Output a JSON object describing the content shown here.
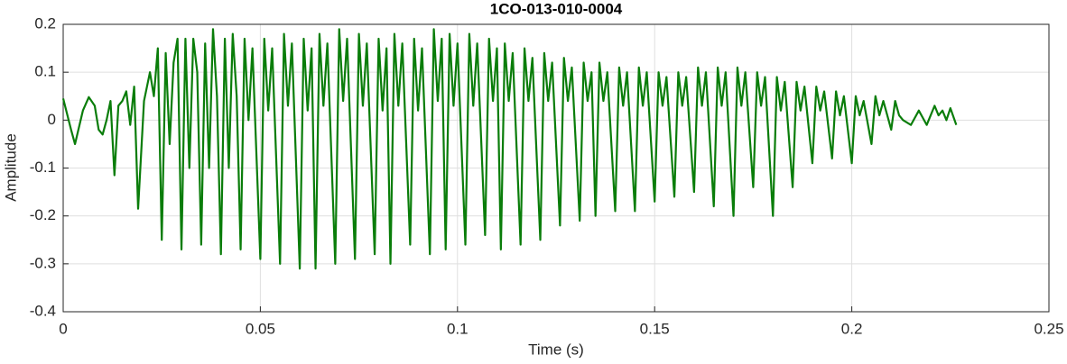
{
  "chart_data": {
    "type": "line",
    "title": "1CO-013-010-0004",
    "x_label": "Time (s)",
    "y_label": "Amplitude",
    "xlim": [
      0,
      0.25
    ],
    "xticks": [
      0,
      0.05,
      0.1,
      0.15,
      0.2,
      0.25
    ],
    "ylim": [
      -0.4,
      0.2
    ],
    "yticks": [
      -0.4,
      -0.3,
      -0.2,
      -0.1,
      0,
      0.1,
      0.2
    ],
    "grid": true,
    "series": [
      {
        "name": "1CO-013-010-0004",
        "color": "#0a7d0a",
        "x": [
          0,
          0.002,
          0.003,
          0.005,
          0.0065,
          0.008,
          0.009,
          0.01,
          0.011,
          0.012,
          0.013,
          0.014,
          0.015,
          0.016,
          0.017,
          0.018,
          0.019,
          0.0205,
          0.022,
          0.023,
          0.024,
          0.025,
          0.026,
          0.027,
          0.028,
          0.029,
          0.03,
          0.031,
          0.032,
          0.033,
          0.034,
          0.035,
          0.036,
          0.037,
          0.038,
          0.039,
          0.04,
          0.041,
          0.042,
          0.043,
          0.044,
          0.045,
          0.046,
          0.047,
          0.048,
          0.05,
          0.051,
          0.052,
          0.053,
          0.055,
          0.056,
          0.057,
          0.058,
          0.06,
          0.061,
          0.062,
          0.063,
          0.064,
          0.065,
          0.066,
          0.067,
          0.069,
          0.07,
          0.071,
          0.072,
          0.074,
          0.075,
          0.076,
          0.077,
          0.079,
          0.08,
          0.081,
          0.082,
          0.083,
          0.084,
          0.085,
          0.086,
          0.088,
          0.089,
          0.09,
          0.091,
          0.093,
          0.094,
          0.095,
          0.096,
          0.097,
          0.098,
          0.099,
          0.1,
          0.102,
          0.103,
          0.104,
          0.105,
          0.107,
          0.108,
          0.109,
          0.11,
          0.111,
          0.112,
          0.113,
          0.114,
          0.116,
          0.117,
          0.118,
          0.119,
          0.121,
          0.122,
          0.123,
          0.124,
          0.126,
          0.127,
          0.128,
          0.129,
          0.131,
          0.132,
          0.133,
          0.134,
          0.135,
          0.136,
          0.137,
          0.138,
          0.14,
          0.141,
          0.142,
          0.143,
          0.145,
          0.146,
          0.147,
          0.148,
          0.15,
          0.151,
          0.152,
          0.153,
          0.155,
          0.156,
          0.157,
          0.158,
          0.16,
          0.161,
          0.162,
          0.163,
          0.165,
          0.166,
          0.167,
          0.168,
          0.17,
          0.171,
          0.172,
          0.173,
          0.175,
          0.176,
          0.177,
          0.178,
          0.18,
          0.181,
          0.182,
          0.183,
          0.185,
          0.186,
          0.187,
          0.188,
          0.19,
          0.191,
          0.192,
          0.193,
          0.195,
          0.196,
          0.197,
          0.198,
          0.2,
          0.201,
          0.202,
          0.203,
          0.205,
          0.206,
          0.207,
          0.208,
          0.21,
          0.211,
          0.212,
          0.213,
          0.215,
          0.217,
          0.219,
          0.221,
          0.222,
          0.223,
          0.224,
          0.225,
          0.2265
        ],
        "values": [
          0.045,
          -0.02,
          -0.05,
          0.02,
          0.048,
          0.03,
          -0.02,
          -0.03,
          0.0,
          0.04,
          -0.115,
          0.03,
          0.04,
          0.06,
          -0.01,
          0.07,
          -0.185,
          0.04,
          0.1,
          0.05,
          0.15,
          -0.25,
          0.14,
          -0.05,
          0.12,
          0.17,
          -0.27,
          0.17,
          -0.1,
          0.17,
          0.1,
          -0.26,
          0.16,
          -0.1,
          0.19,
          0.05,
          -0.28,
          0.17,
          -0.1,
          0.18,
          0.05,
          -0.27,
          0.17,
          0.0,
          0.15,
          -0.29,
          0.17,
          0.02,
          0.15,
          -0.3,
          0.18,
          0.03,
          0.16,
          -0.31,
          0.17,
          0.02,
          0.15,
          -0.31,
          0.18,
          0.03,
          0.16,
          -0.3,
          0.19,
          0.04,
          0.17,
          -0.29,
          0.18,
          0.03,
          0.16,
          -0.28,
          0.17,
          0.02,
          0.15,
          -0.3,
          0.18,
          0.03,
          0.16,
          -0.26,
          0.17,
          0.02,
          0.15,
          -0.28,
          0.19,
          0.04,
          0.17,
          -0.27,
          0.18,
          0.03,
          0.16,
          -0.26,
          0.18,
          0.03,
          0.16,
          -0.24,
          0.17,
          0.04,
          0.15,
          -0.27,
          0.16,
          0.04,
          0.14,
          -0.26,
          0.15,
          0.04,
          0.13,
          -0.25,
          0.14,
          0.04,
          0.12,
          -0.22,
          0.13,
          0.04,
          0.11,
          -0.21,
          0.12,
          0.04,
          0.1,
          -0.2,
          0.12,
          0.04,
          0.1,
          -0.19,
          0.11,
          0.03,
          0.1,
          -0.19,
          0.11,
          0.03,
          0.1,
          -0.17,
          0.1,
          0.03,
          0.09,
          -0.16,
          0.1,
          0.03,
          0.09,
          -0.15,
          0.11,
          0.03,
          0.1,
          -0.18,
          0.11,
          0.03,
          0.1,
          -0.2,
          0.11,
          0.03,
          0.1,
          -0.14,
          0.1,
          0.03,
          0.09,
          -0.2,
          0.09,
          0.02,
          0.08,
          -0.14,
          0.08,
          0.02,
          0.07,
          -0.09,
          0.07,
          0.02,
          0.06,
          -0.08,
          0.06,
          0.01,
          0.05,
          -0.09,
          0.05,
          0.01,
          0.04,
          -0.05,
          0.05,
          0.01,
          0.04,
          -0.02,
          0.04,
          0.01,
          0.0,
          -0.01,
          0.02,
          -0.01,
          0.03,
          0.01,
          0.02,
          0.0,
          0.025,
          -0.01
        ]
      }
    ]
  }
}
